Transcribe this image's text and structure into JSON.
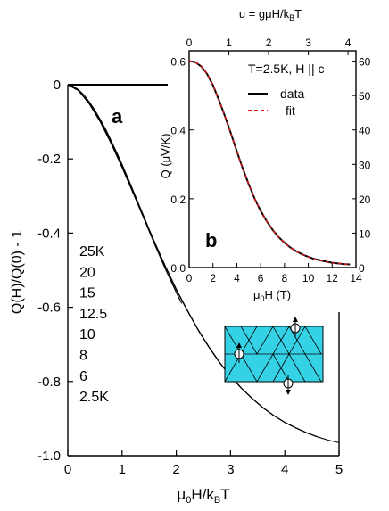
{
  "chart_data": [
    {
      "type": "line",
      "panel_label": "a",
      "xlabel_parts": [
        "μ",
        "0",
        "H/k",
        "B",
        "T"
      ],
      "ylabel": "Q(H)/Q(0) - 1",
      "xlim": [
        0,
        5
      ],
      "ylim": [
        -1.0,
        0.0
      ],
      "xticks": [
        0,
        1,
        2,
        3,
        4,
        5
      ],
      "yticks": [
        0,
        -0.2,
        -0.4,
        -0.6,
        -0.8,
        -1.0
      ],
      "ytick_labels": [
        "0",
        "-0.2",
        "-0.4",
        "-0.6",
        "-0.8",
        "-1.0"
      ],
      "legend_list": [
        "25K",
        "20",
        "15",
        "12.5",
        "10",
        "8",
        "6",
        "2.5K"
      ],
      "series": [
        {
          "name": "25K",
          "x": [
            0,
            0.05,
            0.1,
            0.2,
            0.3,
            0.4,
            0.5,
            0.6,
            0.7,
            0.8,
            0.9,
            1.0,
            1.1,
            1.2,
            1.3,
            1.4,
            1.5,
            1.6,
            1.7,
            1.8
          ],
          "y": [
            0,
            -0.001,
            -0.004,
            -0.014,
            -0.028,
            -0.047,
            -0.069,
            -0.094,
            -0.121,
            -0.151,
            -0.182,
            -0.215,
            -0.249,
            -0.284,
            -0.319,
            -0.354,
            -0.39,
            -0.424,
            -0.458,
            -0.491
          ]
        },
        {
          "name": "20",
          "x": [
            0,
            0.1,
            0.2,
            0.4,
            0.6,
            0.8,
            1.0,
            1.2,
            1.4,
            1.6,
            1.8,
            2.0,
            2.1
          ],
          "y": [
            0,
            -0.005,
            -0.016,
            -0.05,
            -0.098,
            -0.155,
            -0.22,
            -0.29,
            -0.36,
            -0.43,
            -0.497,
            -0.56,
            -0.59
          ]
        },
        {
          "name": "15",
          "x": [
            0,
            0.1,
            0.2,
            0.4,
            0.6,
            0.8,
            1.0,
            1.2,
            1.4,
            1.6,
            1.8,
            2.0,
            2.2,
            2.4,
            2.6,
            2.8
          ],
          "y": [
            0,
            -0.005,
            -0.016,
            -0.052,
            -0.1,
            -0.158,
            -0.222,
            -0.29,
            -0.358,
            -0.426,
            -0.49,
            -0.552,
            -0.608,
            -0.66,
            -0.707,
            -0.749
          ]
        },
        {
          "name": "12.5",
          "x": [
            0,
            0.2,
            0.4,
            0.6,
            0.8,
            1.0,
            1.2,
            1.4,
            1.6,
            1.8,
            2.0,
            2.2,
            2.4,
            2.6,
            2.8,
            3.0,
            3.2
          ],
          "y": [
            0,
            -0.016,
            -0.052,
            -0.1,
            -0.158,
            -0.222,
            -0.29,
            -0.358,
            -0.426,
            -0.49,
            -0.552,
            -0.608,
            -0.66,
            -0.707,
            -0.749,
            -0.786,
            -0.818
          ]
        },
        {
          "name": "10",
          "x": [
            0,
            0.2,
            0.4,
            0.6,
            0.8,
            1.0,
            1.2,
            1.4,
            1.6,
            1.8,
            2.0,
            2.2,
            2.4,
            2.6,
            2.8,
            3.0,
            3.2,
            3.4,
            3.6,
            3.8
          ],
          "y": [
            0,
            -0.016,
            -0.052,
            -0.1,
            -0.158,
            -0.222,
            -0.29,
            -0.358,
            -0.426,
            -0.49,
            -0.552,
            -0.608,
            -0.66,
            -0.707,
            -0.749,
            -0.786,
            -0.818,
            -0.846,
            -0.871,
            -0.892
          ]
        },
        {
          "name": "8",
          "x": [
            0,
            0.2,
            0.4,
            0.6,
            0.8,
            1.0,
            1.2,
            1.4,
            1.6,
            1.8,
            2.0,
            2.2,
            2.4,
            2.6,
            2.8,
            3.0,
            3.2,
            3.4,
            3.6,
            3.8,
            4.0,
            4.2,
            4.4
          ],
          "y": [
            0,
            -0.016,
            -0.052,
            -0.1,
            -0.158,
            -0.222,
            -0.29,
            -0.358,
            -0.426,
            -0.49,
            -0.552,
            -0.608,
            -0.66,
            -0.707,
            -0.749,
            -0.786,
            -0.818,
            -0.846,
            -0.871,
            -0.892,
            -0.91,
            -0.925,
            -0.938
          ]
        },
        {
          "name": "6",
          "x": [
            0,
            0.2,
            0.4,
            0.6,
            0.8,
            1.0,
            1.2,
            1.4,
            1.6,
            1.8,
            2.0,
            2.2,
            2.4,
            2.6,
            2.8,
            3.0,
            3.2,
            3.4,
            3.6,
            3.8,
            4.0,
            4.2,
            4.4,
            4.6
          ],
          "y": [
            0,
            -0.016,
            -0.052,
            -0.1,
            -0.158,
            -0.222,
            -0.29,
            -0.358,
            -0.426,
            -0.49,
            -0.552,
            -0.608,
            -0.66,
            -0.707,
            -0.749,
            -0.786,
            -0.818,
            -0.846,
            -0.871,
            -0.892,
            -0.91,
            -0.925,
            -0.938,
            -0.949
          ]
        },
        {
          "name": "2.5K",
          "x": [
            0,
            0.2,
            0.4,
            0.6,
            0.8,
            1.0,
            1.2,
            1.4,
            1.6,
            1.8,
            2.0,
            2.2,
            2.4,
            2.6,
            2.8,
            3.0,
            3.2,
            3.4,
            3.6,
            3.8,
            4.0,
            4.2,
            4.4,
            4.6,
            4.8,
            5.0
          ],
          "y": [
            0,
            -0.016,
            -0.052,
            -0.1,
            -0.158,
            -0.222,
            -0.29,
            -0.358,
            -0.426,
            -0.49,
            -0.552,
            -0.608,
            -0.66,
            -0.707,
            -0.749,
            -0.786,
            -0.818,
            -0.846,
            -0.871,
            -0.892,
            -0.91,
            -0.925,
            -0.938,
            -0.949,
            -0.958,
            -0.965
          ]
        }
      ]
    },
    {
      "type": "line",
      "panel_label": "b",
      "condition_text": "T=2.5K, H || c",
      "xlabel_parts": [
        "μ",
        "0",
        "H  (T)"
      ],
      "ylabel": "Q (μV/K)",
      "top_xlabel": "u = gμH/k",
      "top_xlabel_sub": "B",
      "top_xlabel_tail": "T",
      "xlim": [
        0,
        14
      ],
      "ylim": [
        0,
        0.63
      ],
      "xticks": [
        0,
        2,
        4,
        6,
        8,
        10,
        12,
        14
      ],
      "yticks": [
        0,
        0.2,
        0.4,
        0.6
      ],
      "ytick_labels": [
        "0.0",
        "0.2",
        "0.4",
        "0.6"
      ],
      "top_xlim": [
        0,
        4.2
      ],
      "top_xticks": [
        0,
        1,
        2,
        3,
        4
      ],
      "right_ylim": [
        0,
        63
      ],
      "right_yticks": [
        0,
        10,
        20,
        30,
        40,
        50,
        60
      ],
      "series": [
        {
          "name": "data",
          "x": [
            0,
            0.5,
            1,
            1.5,
            2,
            2.5,
            3,
            3.5,
            4,
            4.5,
            5,
            5.5,
            6,
            6.5,
            7,
            7.5,
            8,
            8.5,
            9,
            9.5,
            10,
            10.5,
            11,
            11.5,
            12,
            12.5,
            13,
            13.5
          ],
          "y": [
            0.6,
            0.597,
            0.585,
            0.563,
            0.53,
            0.487,
            0.44,
            0.39,
            0.338,
            0.288,
            0.242,
            0.2,
            0.165,
            0.135,
            0.11,
            0.089,
            0.072,
            0.058,
            0.047,
            0.038,
            0.031,
            0.025,
            0.021,
            0.017,
            0.014,
            0.012,
            0.01,
            0.009
          ]
        },
        {
          "name": "fit",
          "x": [
            0,
            0.5,
            1,
            1.5,
            2,
            2.5,
            3,
            3.5,
            4,
            4.5,
            5,
            5.5,
            6,
            6.5,
            7,
            7.5,
            8,
            8.5,
            9,
            9.5,
            10,
            10.5,
            11,
            11.5,
            12,
            12.5,
            13,
            13.5
          ],
          "y": [
            0.6,
            0.597,
            0.585,
            0.563,
            0.53,
            0.487,
            0.44,
            0.39,
            0.338,
            0.288,
            0.242,
            0.2,
            0.165,
            0.135,
            0.11,
            0.089,
            0.072,
            0.058,
            0.047,
            0.038,
            0.031,
            0.025,
            0.021,
            0.017,
            0.014,
            0.012,
            0.01,
            0.009
          ]
        }
      ],
      "colors": {
        "data": "#000000",
        "fit": "#e01818"
      }
    }
  ],
  "lattice_fill": "#35d2e6"
}
